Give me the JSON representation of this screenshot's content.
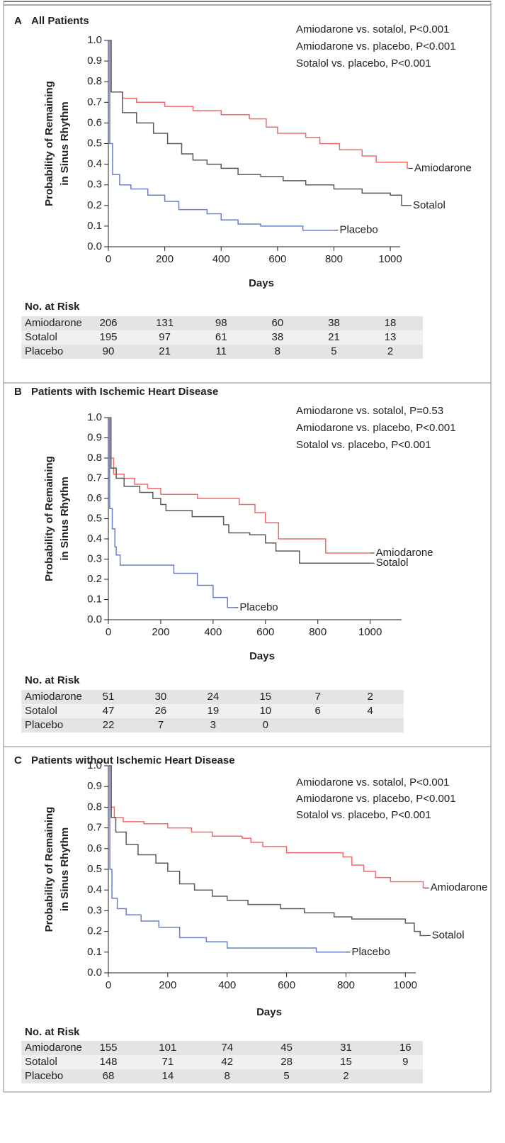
{
  "chart_data": [
    {
      "type": "step",
      "panel_label": "A",
      "title": "All Patients",
      "annotations": [
        "Amiodarone vs. sotalol, P<0.001",
        "Amiodarone vs. placebo, P<0.001",
        "Sotalol vs. placebo, P<0.001"
      ],
      "ylabel": [
        "Probability of Remaining",
        "in Sinus Rhythm"
      ],
      "xlabel": "Days",
      "xlim": [
        0,
        1035
      ],
      "xticks": [
        0,
        200,
        400,
        600,
        800,
        1000
      ],
      "ylim": [
        0,
        1
      ],
      "yticks": [
        {
          "value": 0,
          "label": "0.0"
        },
        0.1,
        0.2,
        0.3,
        0.4,
        0.5,
        0.6,
        0.7,
        0.8,
        0.9,
        {
          "value": 1,
          "label": "1.0"
        }
      ],
      "series": [
        {
          "name": "Amiodarone",
          "color": "#f06a6a",
          "x": [
            0,
            10,
            50,
            100,
            200,
            300,
            400,
            500,
            560,
            600,
            700,
            750,
            820,
            900,
            950,
            1060,
            1065
          ],
          "values": [
            1.0,
            0.75,
            0.72,
            0.7,
            0.68,
            0.66,
            0.64,
            0.62,
            0.58,
            0.55,
            0.53,
            0.5,
            0.47,
            0.44,
            0.41,
            0.38,
            0.38
          ]
        },
        {
          "name": "Sotalol",
          "color": "#5a5a5a",
          "x": [
            0,
            10,
            50,
            100,
            160,
            210,
            260,
            300,
            350,
            400,
            460,
            540,
            620,
            700,
            800,
            900,
            1000,
            1040,
            1060
          ],
          "values": [
            1.0,
            0.75,
            0.65,
            0.6,
            0.55,
            0.5,
            0.45,
            0.42,
            0.4,
            0.38,
            0.35,
            0.34,
            0.32,
            0.3,
            0.28,
            0.26,
            0.25,
            0.2,
            0.2
          ]
        },
        {
          "name": "Placebo",
          "color": "#6a7fc8",
          "x": [
            0,
            5,
            15,
            40,
            80,
            140,
            200,
            250,
            350,
            400,
            460,
            540,
            690,
            800
          ],
          "values": [
            1.0,
            0.5,
            0.35,
            0.3,
            0.28,
            0.25,
            0.22,
            0.18,
            0.16,
            0.13,
            0.11,
            0.1,
            0.08,
            0.08
          ]
        }
      ],
      "risk_table": {
        "title": "No. at Risk",
        "rows": [
          [
            206,
            131,
            98,
            60,
            38,
            18
          ],
          [
            195,
            97,
            61,
            38,
            21,
            13
          ],
          [
            90,
            21,
            11,
            8,
            5,
            2
          ]
        ]
      }
    },
    {
      "type": "step",
      "panel_label": "B",
      "title": "Patients with Ischemic Heart Disease",
      "annotations": [
        "Amiodarone vs. sotalol, P=0.53",
        "Amiodarone vs. placebo, P<0.001",
        "Sotalol vs. placebo, P<0.001"
      ],
      "ylabel": [
        "Probability of Remaining",
        "in Sinus Rhythm"
      ],
      "xlabel": "Days",
      "xlim": [
        0,
        1120
      ],
      "xticks": [
        0,
        200,
        400,
        600,
        800,
        1000
      ],
      "ylim": [
        0,
        1
      ],
      "yticks": [
        {
          "value": 0,
          "label": "0.0"
        },
        0.1,
        0.2,
        0.3,
        0.4,
        0.5,
        0.6,
        0.7,
        0.8,
        0.9,
        {
          "value": 1,
          "label": "1.0"
        }
      ],
      "series": [
        {
          "name": "Amiodarone",
          "color": "#f06a6a",
          "x": [
            0,
            5,
            20,
            60,
            100,
            150,
            200,
            340,
            500,
            560,
            600,
            650,
            830,
            1000
          ],
          "values": [
            1.0,
            0.8,
            0.72,
            0.7,
            0.67,
            0.65,
            0.62,
            0.6,
            0.57,
            0.53,
            0.48,
            0.4,
            0.33,
            0.33
          ]
        },
        {
          "name": "Sotalol",
          "color": "#5a5a5a",
          "x": [
            0,
            10,
            30,
            60,
            120,
            170,
            200,
            220,
            320,
            440,
            460,
            540,
            600,
            640,
            730,
            1000
          ],
          "values": [
            1.0,
            0.75,
            0.7,
            0.66,
            0.63,
            0.6,
            0.57,
            0.54,
            0.51,
            0.47,
            0.43,
            0.42,
            0.38,
            0.34,
            0.28,
            0.28
          ]
        },
        {
          "name": "Placebo",
          "color": "#6a7fc8",
          "x": [
            0,
            5,
            15,
            25,
            30,
            45,
            250,
            340,
            400,
            455,
            480
          ],
          "values": [
            1.0,
            0.55,
            0.45,
            0.36,
            0.32,
            0.27,
            0.23,
            0.17,
            0.11,
            0.06,
            0.06
          ]
        }
      ],
      "risk_table": {
        "title": "No. at Risk",
        "rows": [
          [
            51,
            30,
            24,
            15,
            7,
            2
          ],
          [
            47,
            26,
            19,
            10,
            6,
            4
          ],
          [
            22,
            7,
            3,
            0
          ]
        ]
      }
    },
    {
      "type": "step",
      "panel_label": "C",
      "title": "Patients without Ischemic Heart Disease",
      "annotations": [
        "Amiodarone vs. sotalol, P<0.001",
        "Amiodarone vs. placebo, P<0.001",
        "Sotalol vs. placebo, P<0.001"
      ],
      "ylabel": [
        "Probability of Remaining",
        "in Sinus Rhythm"
      ],
      "xlabel": "Days",
      "xlim": [
        0,
        1035
      ],
      "xticks": [
        0,
        200,
        400,
        600,
        800,
        1000
      ],
      "ylim": [
        0,
        1
      ],
      "yticks": [
        {
          "value": 0,
          "label": "0.0"
        },
        0.1,
        0.2,
        0.3,
        0.4,
        0.5,
        0.6,
        0.7,
        0.8,
        0.9,
        {
          "value": 1,
          "label": "1.0"
        }
      ],
      "series": [
        {
          "name": "Amiodarone",
          "color": "#f06a6a",
          "x": [
            0,
            5,
            20,
            50,
            120,
            200,
            280,
            350,
            450,
            480,
            520,
            600,
            790,
            820,
            860,
            900,
            950,
            1060,
            1065
          ],
          "values": [
            1.0,
            0.8,
            0.75,
            0.73,
            0.72,
            0.7,
            0.68,
            0.66,
            0.65,
            0.63,
            0.61,
            0.58,
            0.56,
            0.52,
            0.49,
            0.46,
            0.44,
            0.41,
            0.41
          ]
        },
        {
          "name": "Sotalol",
          "color": "#5a5a5a",
          "x": [
            0,
            10,
            25,
            60,
            100,
            160,
            200,
            240,
            290,
            350,
            400,
            470,
            580,
            660,
            760,
            820,
            1000,
            1030,
            1050,
            1070
          ],
          "values": [
            1.0,
            0.75,
            0.68,
            0.62,
            0.57,
            0.53,
            0.49,
            0.43,
            0.4,
            0.37,
            0.35,
            0.33,
            0.31,
            0.29,
            0.27,
            0.26,
            0.24,
            0.2,
            0.18,
            0.18
          ]
        },
        {
          "name": "Placebo",
          "color": "#6a7fc8",
          "x": [
            0,
            5,
            12,
            30,
            60,
            110,
            170,
            240,
            330,
            400,
            700,
            800
          ],
          "values": [
            1.0,
            0.5,
            0.36,
            0.31,
            0.28,
            0.25,
            0.22,
            0.17,
            0.15,
            0.12,
            0.1,
            0.1
          ]
        }
      ],
      "risk_table": {
        "title": "No. at Risk",
        "rows": [
          [
            155,
            101,
            74,
            45,
            31,
            16
          ],
          [
            148,
            71,
            42,
            28,
            15,
            9
          ],
          [
            68,
            14,
            8,
            5,
            2
          ]
        ]
      }
    }
  ]
}
